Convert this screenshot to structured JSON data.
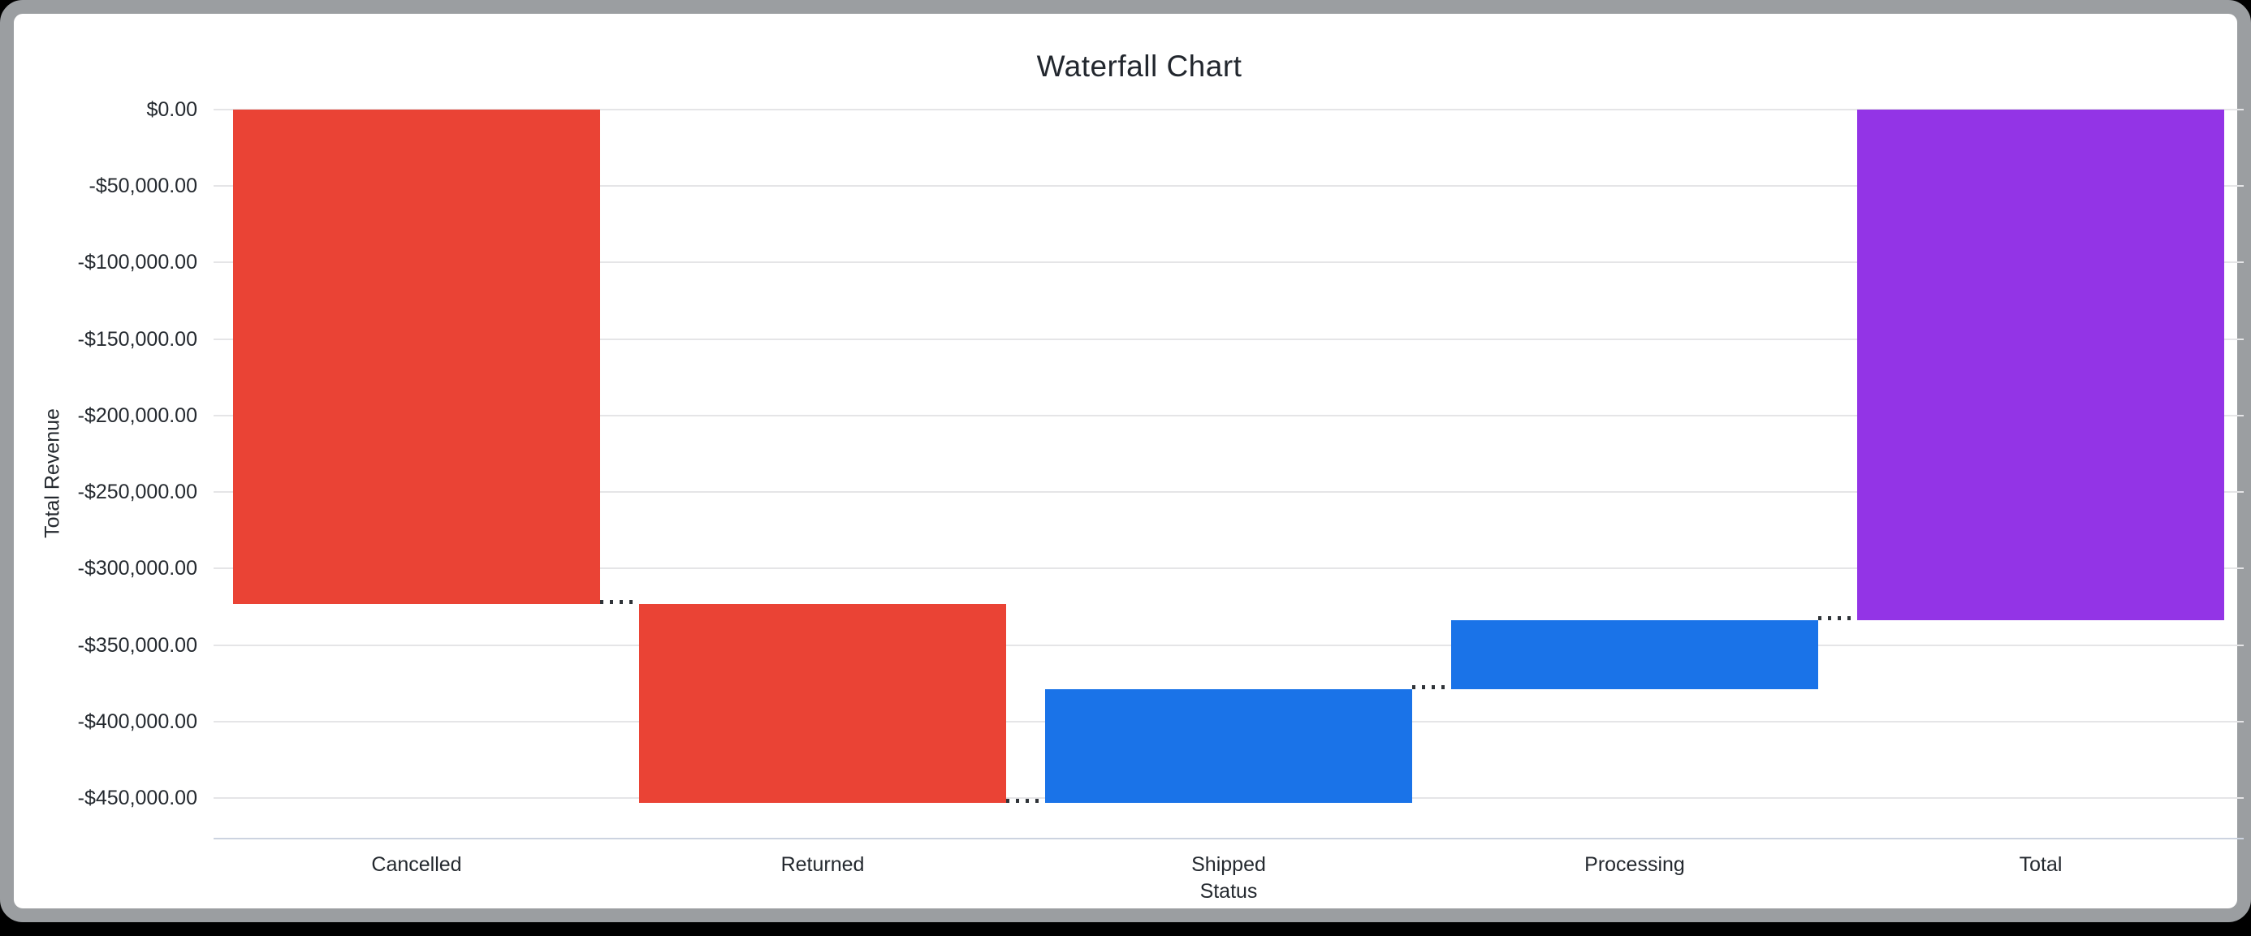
{
  "window": {
    "frame_color": "#9b9ea1",
    "background_color": "#ffffff",
    "outside_color": "#000000"
  },
  "chart": {
    "title": "Waterfall Chart",
    "x_axis_title": "Status",
    "y_axis_title": "Total Revenue"
  },
  "chart_data": {
    "type": "waterfall",
    "title": "Waterfall Chart",
    "xlabel": "Status",
    "ylabel": "Total Revenue",
    "categories": [
      "Cancelled",
      "Returned",
      "Shipped",
      "Processing",
      "Total"
    ],
    "steps": [
      {
        "label": "Cancelled",
        "start": 0,
        "end": -323000,
        "change": -323000,
        "role": "decrease"
      },
      {
        "label": "Returned",
        "start": -323000,
        "end": -453000,
        "change": -130000,
        "role": "decrease"
      },
      {
        "label": "Shipped",
        "start": -453000,
        "end": -379000,
        "change": 74000,
        "role": "increase"
      },
      {
        "label": "Processing",
        "start": -379000,
        "end": -334000,
        "change": 45000,
        "role": "increase"
      },
      {
        "label": "Total",
        "start": 0,
        "end": -334000,
        "change": -334000,
        "role": "total"
      }
    ],
    "y_ticks": [
      {
        "label": "$0.00",
        "value": 0
      },
      {
        "label": "-$50,000.00",
        "value": -50000
      },
      {
        "label": "-$100,000.00",
        "value": -100000
      },
      {
        "label": "-$150,000.00",
        "value": -150000
      },
      {
        "label": "-$200,000.00",
        "value": -200000
      },
      {
        "label": "-$250,000.00",
        "value": -250000
      },
      {
        "label": "-$300,000.00",
        "value": -300000
      },
      {
        "label": "-$350,000.00",
        "value": -350000
      },
      {
        "label": "-$400,000.00",
        "value": -400000
      },
      {
        "label": "-$450,000.00",
        "value": -450000
      }
    ],
    "ylim": [
      -476500,
      0
    ],
    "grid": true,
    "legend": "none",
    "colors": {
      "decrease": "#EA4335",
      "increase": "#1A73E8",
      "total": "#9334E6",
      "connector": "#2f3338",
      "gridline": "#e5e5e7",
      "baseline": "#ccd3e0"
    }
  }
}
